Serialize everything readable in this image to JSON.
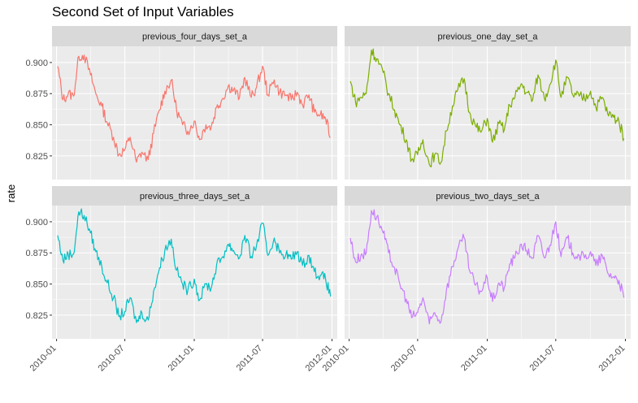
{
  "chart_data": {
    "type": "line",
    "title": "Second Set of Input Variables",
    "xlabel": "",
    "ylabel": "rate",
    "layout": "facet-grid-2x2",
    "grid": true,
    "legend": "none",
    "xlim": [
      "2009-12-20",
      "2012-01-15"
    ],
    "ylim": [
      0.806,
      0.913
    ],
    "x_ticks": [
      "2010-01",
      "2010-07",
      "2011-01",
      "2011-07",
      "2012-01"
    ],
    "y_ticks": [
      0.825,
      0.85,
      0.875,
      0.9
    ],
    "y_tick_labels": [
      "0.825",
      "0.850",
      "0.875",
      "0.900"
    ],
    "facets": [
      {
        "name": "previous_four_days_set_a",
        "color": "#F8766D",
        "x": [
          "2010-01-04",
          "2010-01-18",
          "2010-02-01",
          "2010-02-15",
          "2010-03-01",
          "2010-03-15",
          "2010-04-01",
          "2010-04-15",
          "2010-05-01",
          "2010-05-15",
          "2010-06-01",
          "2010-06-15",
          "2010-07-01",
          "2010-07-15",
          "2010-08-01",
          "2010-08-15",
          "2010-09-01",
          "2010-09-15",
          "2010-10-01",
          "2010-10-15",
          "2010-11-01",
          "2010-11-15",
          "2010-12-01",
          "2010-12-15",
          "2011-01-01",
          "2011-01-15",
          "2011-02-01",
          "2011-02-15",
          "2011-03-01",
          "2011-03-15",
          "2011-04-01",
          "2011-04-15",
          "2011-05-01",
          "2011-05-15",
          "2011-06-01",
          "2011-06-15",
          "2011-07-01",
          "2011-07-15",
          "2011-08-01",
          "2011-08-15",
          "2011-09-01",
          "2011-09-15",
          "2011-10-01",
          "2011-10-15",
          "2011-11-01",
          "2011-11-15",
          "2011-12-01",
          "2011-12-15",
          "2011-12-28"
        ],
        "values": [
          0.897,
          0.87,
          0.875,
          0.873,
          0.905,
          0.906,
          0.89,
          0.875,
          0.865,
          0.852,
          0.84,
          0.826,
          0.83,
          0.84,
          0.82,
          0.828,
          0.822,
          0.843,
          0.862,
          0.877,
          0.886,
          0.862,
          0.85,
          0.845,
          0.853,
          0.838,
          0.85,
          0.848,
          0.864,
          0.87,
          0.881,
          0.878,
          0.872,
          0.888,
          0.872,
          0.88,
          0.897,
          0.874,
          0.886,
          0.876,
          0.874,
          0.87,
          0.876,
          0.866,
          0.874,
          0.86,
          0.858,
          0.855,
          0.84
        ]
      },
      {
        "name": "previous_one_day_set_a",
        "color": "#7CAE00",
        "x": [
          "2010-01-04",
          "2010-01-18",
          "2010-02-01",
          "2010-02-15",
          "2010-03-01",
          "2010-03-15",
          "2010-04-01",
          "2010-04-15",
          "2010-05-01",
          "2010-05-15",
          "2010-06-01",
          "2010-06-15",
          "2010-07-01",
          "2010-07-15",
          "2010-08-01",
          "2010-08-15",
          "2010-09-01",
          "2010-09-15",
          "2010-10-01",
          "2010-10-15",
          "2010-11-01",
          "2010-11-15",
          "2010-12-01",
          "2010-12-15",
          "2011-01-01",
          "2011-01-15",
          "2011-02-01",
          "2011-02-15",
          "2011-03-01",
          "2011-03-15",
          "2011-04-01",
          "2011-04-15",
          "2011-05-01",
          "2011-05-15",
          "2011-06-01",
          "2011-06-15",
          "2011-07-01",
          "2011-07-15",
          "2011-08-01",
          "2011-08-15",
          "2011-09-01",
          "2011-09-15",
          "2011-10-01",
          "2011-10-15",
          "2011-11-01",
          "2011-11-15",
          "2011-12-01",
          "2011-12-15",
          "2011-12-28"
        ],
        "values": [
          0.885,
          0.868,
          0.872,
          0.875,
          0.91,
          0.903,
          0.892,
          0.875,
          0.862,
          0.85,
          0.838,
          0.822,
          0.826,
          0.838,
          0.818,
          0.826,
          0.82,
          0.845,
          0.865,
          0.878,
          0.887,
          0.86,
          0.849,
          0.844,
          0.855,
          0.836,
          0.851,
          0.846,
          0.866,
          0.872,
          0.883,
          0.876,
          0.87,
          0.89,
          0.871,
          0.882,
          0.902,
          0.872,
          0.888,
          0.874,
          0.873,
          0.871,
          0.877,
          0.864,
          0.872,
          0.859,
          0.856,
          0.853,
          0.839
        ]
      },
      {
        "name": "previous_three_days_set_a",
        "color": "#00BFC4",
        "x": [
          "2010-01-04",
          "2010-01-18",
          "2010-02-01",
          "2010-02-15",
          "2010-03-01",
          "2010-03-15",
          "2010-04-01",
          "2010-04-15",
          "2010-05-01",
          "2010-05-15",
          "2010-06-01",
          "2010-06-15",
          "2010-07-01",
          "2010-07-15",
          "2010-08-01",
          "2010-08-15",
          "2010-09-01",
          "2010-09-15",
          "2010-10-01",
          "2010-10-15",
          "2010-11-01",
          "2010-11-15",
          "2010-12-01",
          "2010-12-15",
          "2011-01-01",
          "2011-01-15",
          "2011-02-01",
          "2011-02-15",
          "2011-03-01",
          "2011-03-15",
          "2011-04-01",
          "2011-04-15",
          "2011-05-01",
          "2011-05-15",
          "2011-06-01",
          "2011-06-15",
          "2011-07-01",
          "2011-07-15",
          "2011-08-01",
          "2011-08-15",
          "2011-09-01",
          "2011-09-15",
          "2011-10-01",
          "2011-10-15",
          "2011-11-01",
          "2011-11-15",
          "2011-12-01",
          "2011-12-15",
          "2011-12-28"
        ],
        "values": [
          0.889,
          0.869,
          0.874,
          0.874,
          0.908,
          0.905,
          0.891,
          0.876,
          0.864,
          0.851,
          0.839,
          0.824,
          0.828,
          0.839,
          0.819,
          0.827,
          0.821,
          0.844,
          0.863,
          0.877,
          0.886,
          0.861,
          0.85,
          0.845,
          0.854,
          0.837,
          0.85,
          0.847,
          0.865,
          0.871,
          0.882,
          0.877,
          0.871,
          0.889,
          0.872,
          0.881,
          0.899,
          0.873,
          0.887,
          0.875,
          0.874,
          0.87,
          0.876,
          0.865,
          0.873,
          0.86,
          0.857,
          0.854,
          0.84
        ]
      },
      {
        "name": "previous_two_days_set_a",
        "color": "#C77CFF",
        "x": [
          "2010-01-04",
          "2010-01-18",
          "2010-02-01",
          "2010-02-15",
          "2010-03-01",
          "2010-03-15",
          "2010-04-01",
          "2010-04-15",
          "2010-05-01",
          "2010-05-15",
          "2010-06-01",
          "2010-06-15",
          "2010-07-01",
          "2010-07-15",
          "2010-08-01",
          "2010-08-15",
          "2010-09-01",
          "2010-09-15",
          "2010-10-01",
          "2010-10-15",
          "2010-11-01",
          "2010-11-15",
          "2010-12-01",
          "2010-12-15",
          "2011-01-01",
          "2011-01-15",
          "2011-02-01",
          "2011-02-15",
          "2011-03-01",
          "2011-03-15",
          "2011-04-01",
          "2011-04-15",
          "2011-05-01",
          "2011-05-15",
          "2011-06-01",
          "2011-06-15",
          "2011-07-01",
          "2011-07-15",
          "2011-08-01",
          "2011-08-15",
          "2011-09-01",
          "2011-09-15",
          "2011-10-01",
          "2011-10-15",
          "2011-11-01",
          "2011-11-15",
          "2011-12-01",
          "2011-12-15",
          "2011-12-28"
        ],
        "values": [
          0.887,
          0.868,
          0.873,
          0.875,
          0.909,
          0.904,
          0.891,
          0.875,
          0.863,
          0.85,
          0.838,
          0.823,
          0.827,
          0.839,
          0.818,
          0.827,
          0.82,
          0.845,
          0.864,
          0.878,
          0.887,
          0.861,
          0.849,
          0.844,
          0.855,
          0.836,
          0.851,
          0.847,
          0.866,
          0.871,
          0.882,
          0.877,
          0.871,
          0.889,
          0.871,
          0.881,
          0.9,
          0.872,
          0.887,
          0.875,
          0.873,
          0.871,
          0.876,
          0.865,
          0.873,
          0.859,
          0.856,
          0.853,
          0.839
        ]
      }
    ]
  }
}
